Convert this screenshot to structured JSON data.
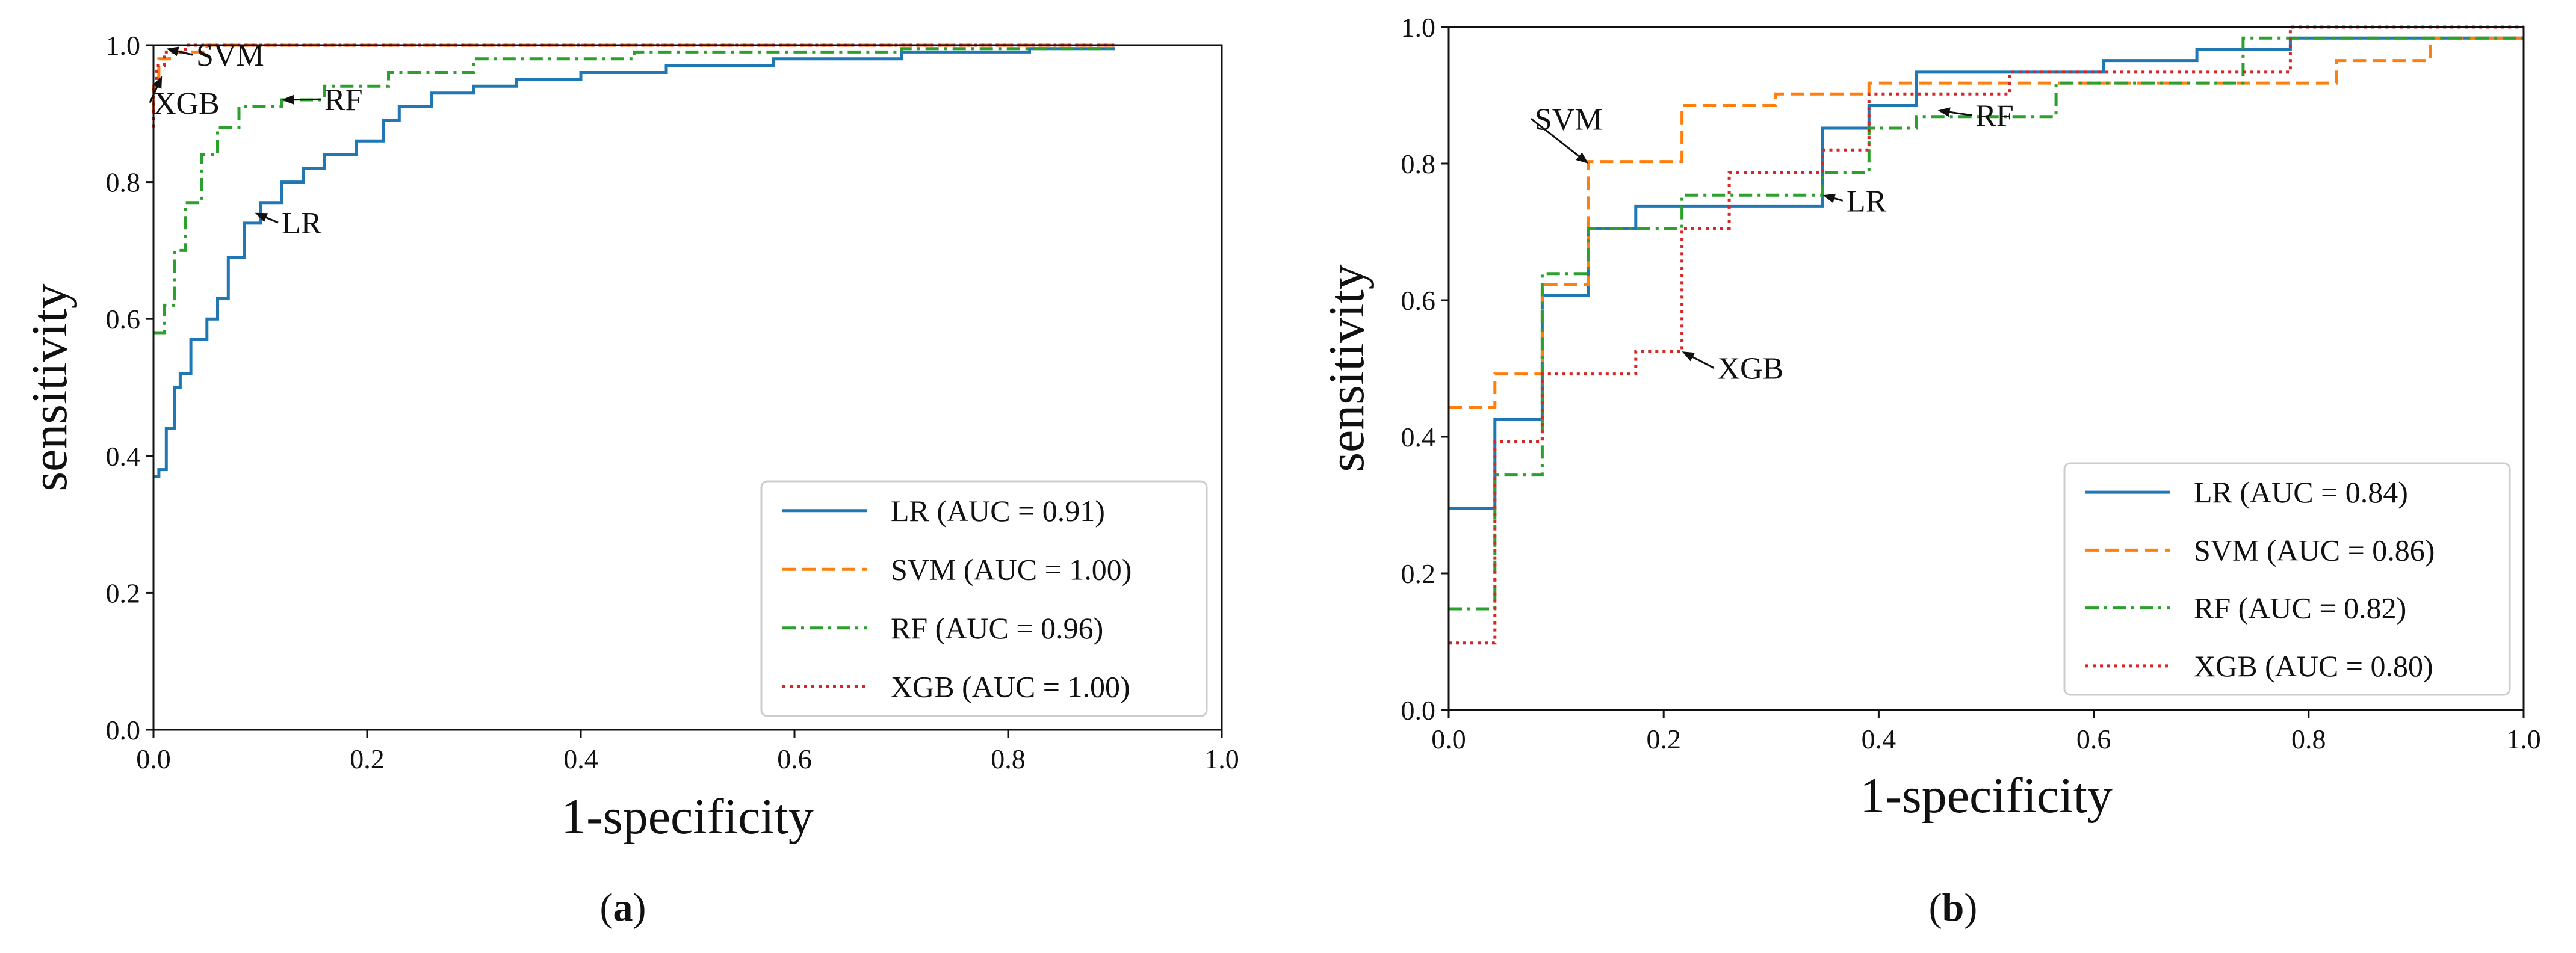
{
  "chart_data": [
    {
      "type": "line",
      "panel": "a",
      "caption": [
        "(",
        "a",
        ")"
      ],
      "title": "",
      "xlabel": "1-specificity",
      "ylabel": "sensitivity",
      "xlim": [
        0,
        1
      ],
      "ylim": [
        0,
        1
      ],
      "xticks": [
        "0.0",
        "0.2",
        "0.4",
        "0.6",
        "0.8",
        "1.0"
      ],
      "yticks": [
        "0.0",
        "0.2",
        "0.4",
        "0.6",
        "0.8",
        "1.0"
      ],
      "grid": false,
      "legend_position": "lower-right",
      "series": [
        {
          "name": "LR (AUC = 0.91)",
          "color": "#1f77b4",
          "style": "solid",
          "x": [
            0,
            0.005,
            0.005,
            0.012,
            0.012,
            0.02,
            0.02,
            0.025,
            0.025,
            0.035,
            0.035,
            0.05,
            0.05,
            0.06,
            0.06,
            0.07,
            0.07,
            0.085,
            0.085,
            0.1,
            0.1,
            0.12,
            0.12,
            0.14,
            0.14,
            0.16,
            0.16,
            0.19,
            0.19,
            0.215,
            0.215,
            0.23,
            0.23,
            0.26,
            0.26,
            0.3,
            0.3,
            0.34,
            0.34,
            0.4,
            0.4,
            0.48,
            0.48,
            0.58,
            0.58,
            0.7,
            0.7,
            0.82,
            0.82,
            0.9
          ],
          "y": [
            0.37,
            0.37,
            0.38,
            0.38,
            0.44,
            0.44,
            0.5,
            0.5,
            0.52,
            0.52,
            0.57,
            0.57,
            0.6,
            0.6,
            0.63,
            0.63,
            0.69,
            0.69,
            0.74,
            0.74,
            0.77,
            0.77,
            0.8,
            0.8,
            0.82,
            0.82,
            0.84,
            0.84,
            0.86,
            0.86,
            0.89,
            0.89,
            0.91,
            0.91,
            0.93,
            0.93,
            0.94,
            0.94,
            0.95,
            0.95,
            0.96,
            0.96,
            0.97,
            0.97,
            0.98,
            0.98,
            0.99,
            0.99,
            0.995,
            0.995
          ]
        },
        {
          "name": "SVM (AUC = 1.00)",
          "color": "#ff7f0e",
          "style": "dashed",
          "x": [
            0,
            0,
            0.005,
            0.005,
            0.015,
            0.015,
            0.05,
            0.05,
            0.9
          ],
          "y": [
            0.9,
            0.94,
            0.94,
            0.98,
            0.98,
            0.99,
            0.99,
            1.0,
            1.0
          ]
        },
        {
          "name": "RF (AUC = 0.96)",
          "color": "#2ca02c",
          "style": "dashdot",
          "x": [
            0,
            0.01,
            0.01,
            0.02,
            0.02,
            0.03,
            0.03,
            0.045,
            0.045,
            0.06,
            0.06,
            0.08,
            0.08,
            0.12,
            0.12,
            0.16,
            0.16,
            0.22,
            0.22,
            0.3,
            0.3,
            0.45,
            0.45,
            0.7,
            0.7,
            0.9
          ],
          "y": [
            0.58,
            0.58,
            0.62,
            0.62,
            0.7,
            0.7,
            0.77,
            0.77,
            0.84,
            0.84,
            0.88,
            0.88,
            0.91,
            0.91,
            0.92,
            0.92,
            0.94,
            0.94,
            0.96,
            0.96,
            0.98,
            0.98,
            0.99,
            0.99,
            0.995,
            0.995
          ]
        },
        {
          "name": "XGB (AUC = 1.00)",
          "color": "#d62728",
          "style": "dotted",
          "x": [
            0,
            0,
            0.003,
            0.003,
            0.01,
            0.01,
            0.03,
            0.03,
            0.9
          ],
          "y": [
            0.88,
            0.94,
            0.94,
            0.97,
            0.97,
            0.99,
            0.99,
            1.0,
            1.0
          ]
        }
      ],
      "annotations": [
        {
          "text": "SVM",
          "x": 0.04,
          "y": 0.97,
          "arrow_to": [
            0.012,
            0.995
          ]
        },
        {
          "text": "XGB",
          "x": 0.0,
          "y": 0.9,
          "arrow_to": [
            0.008,
            0.955
          ]
        },
        {
          "text": "RF",
          "x": 0.16,
          "y": 0.905,
          "arrow_to": [
            0.12,
            0.92
          ]
        },
        {
          "text": "LR",
          "x": 0.12,
          "y": 0.725,
          "arrow_to": [
            0.095,
            0.755
          ]
        }
      ]
    },
    {
      "type": "line",
      "panel": "b",
      "caption": [
        "(",
        "b",
        ")"
      ],
      "title": "",
      "xlabel": "1-specificity",
      "ylabel": "sensitivity",
      "xlim": [
        0,
        1
      ],
      "ylim": [
        0,
        1
      ],
      "xticks": [
        "0.0",
        "0.2",
        "0.4",
        "0.6",
        "0.8",
        "1.0"
      ],
      "yticks": [
        "0.0",
        "0.2",
        "0.4",
        "0.6",
        "0.8",
        "1.0"
      ],
      "grid": false,
      "legend_position": "lower-right",
      "series": [
        {
          "name": "LR (AUC = 0.84)",
          "color": "#1f77b4",
          "style": "solid",
          "x": [
            0,
            0.043,
            0.043,
            0.087,
            0.087,
            0.13,
            0.13,
            0.174,
            0.174,
            0.348,
            0.348,
            0.391,
            0.391,
            0.435,
            0.435,
            0.609,
            0.609,
            0.696,
            0.696,
            0.783,
            0.783,
            1.0
          ],
          "y": [
            0.295,
            0.295,
            0.426,
            0.426,
            0.607,
            0.607,
            0.705,
            0.705,
            0.738,
            0.738,
            0.852,
            0.852,
            0.885,
            0.885,
            0.934,
            0.934,
            0.951,
            0.951,
            0.967,
            0.967,
            0.984,
            0.984
          ]
        },
        {
          "name": "SVM (AUC = 0.86)",
          "color": "#ff7f0e",
          "style": "dashed",
          "x": [
            0,
            0.043,
            0.043,
            0.087,
            0.087,
            0.13,
            0.13,
            0.217,
            0.217,
            0.304,
            0.304,
            0.391,
            0.391,
            0.696,
            0.696,
            0.826,
            0.826,
            0.913,
            0.913,
            1.0
          ],
          "y": [
            0.443,
            0.443,
            0.492,
            0.492,
            0.623,
            0.623,
            0.803,
            0.803,
            0.885,
            0.885,
            0.902,
            0.902,
            0.918,
            0.918,
            0.918,
            0.918,
            0.951,
            0.951,
            0.984,
            0.984
          ]
        },
        {
          "name": "RF (AUC = 0.82)",
          "color": "#2ca02c",
          "style": "dashdot",
          "x": [
            0,
            0.043,
            0.043,
            0.087,
            0.087,
            0.13,
            0.13,
            0.217,
            0.217,
            0.348,
            0.348,
            0.391,
            0.391,
            0.435,
            0.435,
            0.565,
            0.565,
            0.739,
            0.739,
            0.913,
            0.913,
            1.0
          ],
          "y": [
            0.148,
            0.148,
            0.344,
            0.344,
            0.639,
            0.639,
            0.705,
            0.705,
            0.754,
            0.754,
            0.787,
            0.787,
            0.852,
            0.852,
            0.869,
            0.869,
            0.918,
            0.918,
            0.984,
            0.984,
            0.984,
            0.984
          ]
        },
        {
          "name": "XGB (AUC = 0.80)",
          "color": "#d62728",
          "style": "dotted",
          "x": [
            0,
            0.043,
            0.043,
            0.087,
            0.087,
            0.174,
            0.174,
            0.217,
            0.217,
            0.261,
            0.261,
            0.348,
            0.348,
            0.391,
            0.391,
            0.522,
            0.522,
            0.783,
            0.783,
            1.0
          ],
          "y": [
            0.098,
            0.098,
            0.393,
            0.393,
            0.492,
            0.492,
            0.525,
            0.525,
            0.705,
            0.705,
            0.787,
            0.787,
            0.82,
            0.82,
            0.902,
            0.902,
            0.934,
            0.934,
            1.0,
            1.0
          ]
        }
      ],
      "annotations": [
        {
          "text": "SVM",
          "x": 0.08,
          "y": 0.85,
          "arrow_to": [
            0.13,
            0.8
          ]
        },
        {
          "text": "RF",
          "x": 0.49,
          "y": 0.855,
          "arrow_to": [
            0.455,
            0.878
          ]
        },
        {
          "text": "LR",
          "x": 0.37,
          "y": 0.73,
          "arrow_to": [
            0.348,
            0.754
          ]
        },
        {
          "text": "XGB",
          "x": 0.25,
          "y": 0.485,
          "arrow_to": [
            0.217,
            0.525
          ]
        }
      ]
    }
  ]
}
